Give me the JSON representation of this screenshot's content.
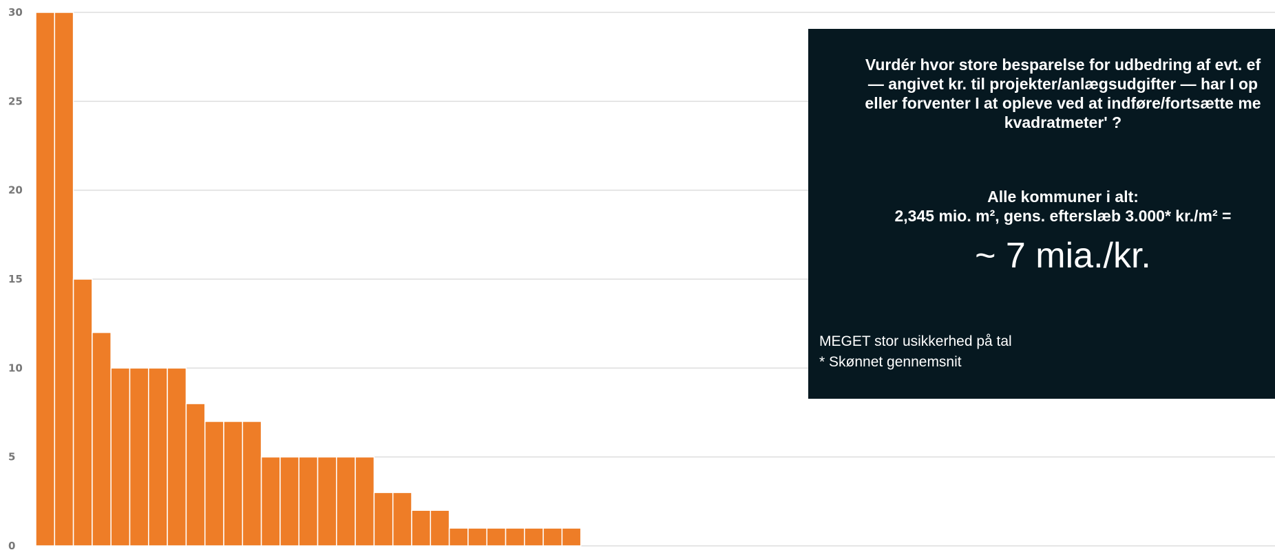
{
  "chart_data": {
    "type": "bar",
    "values": [
      30,
      30,
      15,
      12,
      10,
      10,
      10,
      10,
      8,
      7,
      7,
      7,
      5,
      5,
      5,
      5,
      5,
      5,
      3,
      3,
      2,
      2,
      1,
      1,
      1,
      1,
      1,
      1,
      1
    ],
    "ylim": [
      0,
      30
    ],
    "yticks": [
      "0",
      "5",
      "10",
      "15",
      "20",
      "25",
      "30"
    ],
    "grid": true,
    "bar_color": "#EE7D27"
  },
  "annotation": {
    "question_lines": [
      "Vurdér hvor store besparelse for udbedring af evt. ef",
      "— angivet kr. til projekter/anlægsudgifter — har I op",
      "eller forventer I at opleve ved at indføre/fortsætte me",
      "kvadratmeter' ?"
    ],
    "total_heading": "Alle kommuner i alt:",
    "total_line": "2,345 mio. m², gens. efterslæb 3.000* kr./m² =",
    "big_value": "~ 7 mia./kr.",
    "note_1": "MEGET stor usikkerhed på tal",
    "note_2": "* Skønnet gennemsnit",
    "background_color": "#061820"
  }
}
